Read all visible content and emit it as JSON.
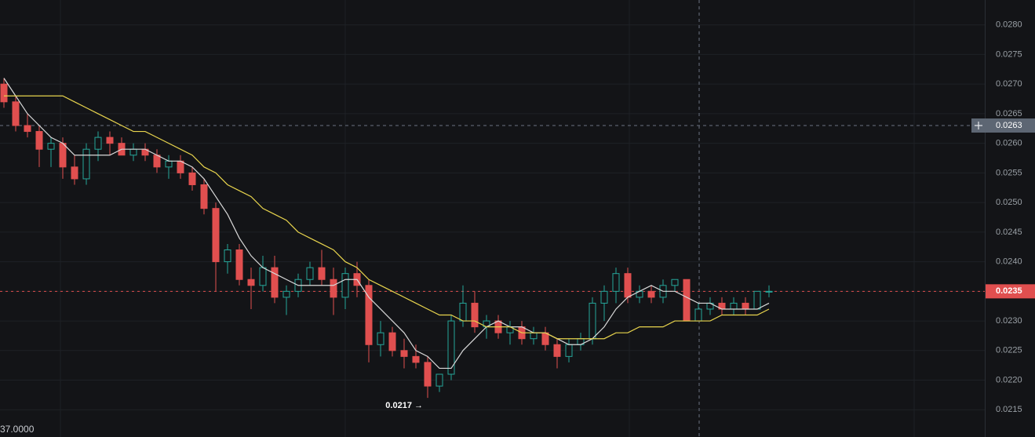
{
  "chart_data": {
    "type": "candlestick",
    "categories": [
      null,
      null,
      null,
      null,
      null,
      null,
      null,
      null,
      null,
      null,
      null,
      null,
      null,
      null,
      null,
      null,
      null,
      null,
      null,
      null,
      null,
      null,
      null,
      null,
      null,
      null,
      null,
      null,
      null,
      null,
      null,
      null,
      null,
      null,
      null,
      null,
      null,
      null,
      null,
      null,
      null,
      null,
      null,
      null,
      null,
      null,
      null,
      null,
      null,
      null,
      null,
      null,
      null,
      null,
      null,
      null,
      null,
      null,
      null,
      null,
      null,
      null,
      null,
      null,
      null,
      null
    ],
    "open": [
      0.027,
      0.0267,
      0.0263,
      0.0262,
      0.0259,
      0.026,
      0.0256,
      0.0254,
      0.0259,
      0.0261,
      0.026,
      0.0258,
      0.0259,
      0.0258,
      0.0256,
      0.0257,
      0.0255,
      0.0253,
      0.0249,
      0.024,
      0.0242,
      0.0237,
      0.0236,
      0.0239,
      0.0234,
      0.0235,
      0.0237,
      0.0239,
      0.0237,
      0.0234,
      0.0238,
      0.0236,
      0.0226,
      0.0228,
      0.0225,
      0.0224,
      0.0223,
      0.0219,
      0.0221,
      0.023,
      0.0233,
      0.0229,
      0.023,
      0.0228,
      0.0229,
      0.0227,
      0.0228,
      0.0226,
      0.0224,
      0.0226,
      0.0227,
      0.0233,
      0.0235,
      0.0238,
      0.0234,
      0.0235,
      0.0234,
      0.0236,
      0.0237,
      0.023,
      0.0232,
      0.0233,
      0.0232,
      0.0233,
      0.0232,
      0.0235
    ],
    "high": [
      0.0271,
      0.0268,
      0.0265,
      0.0263,
      0.0261,
      0.0261,
      0.0258,
      0.026,
      0.0262,
      0.0262,
      0.0261,
      0.026,
      0.026,
      0.0259,
      0.0258,
      0.0258,
      0.0256,
      0.0254,
      0.025,
      0.0243,
      0.0243,
      0.0239,
      0.0241,
      0.0241,
      0.0236,
      0.0238,
      0.024,
      0.0242,
      0.0239,
      0.0239,
      0.024,
      0.0237,
      0.023,
      0.0229,
      0.0227,
      0.0226,
      0.0224,
      0.0221,
      0.0231,
      0.0236,
      0.0235,
      0.0231,
      0.0231,
      0.023,
      0.023,
      0.0229,
      0.0229,
      0.0227,
      0.0227,
      0.0228,
      0.0234,
      0.0236,
      0.0239,
      0.0239,
      0.0236,
      0.0236,
      0.0237,
      0.0237,
      0.0237,
      0.0233,
      0.0234,
      0.0234,
      0.0234,
      0.0234,
      0.0235,
      0.0236
    ],
    "low": [
      0.0266,
      0.0262,
      0.0261,
      0.0256,
      0.0256,
      0.0254,
      0.0253,
      0.0253,
      0.0257,
      0.0258,
      0.0258,
      0.0257,
      0.0257,
      0.0255,
      0.0254,
      0.0254,
      0.0252,
      0.0248,
      0.0235,
      0.0238,
      0.0236,
      0.0232,
      0.0235,
      0.0233,
      0.0231,
      0.0234,
      0.0236,
      0.0236,
      0.0231,
      0.0232,
      0.0234,
      0.0223,
      0.0224,
      0.0224,
      0.0222,
      0.0222,
      0.0217,
      0.0218,
      0.022,
      0.0229,
      0.0228,
      0.0227,
      0.0227,
      0.0226,
      0.0226,
      0.0226,
      0.0225,
      0.0222,
      0.0223,
      0.0225,
      0.0226,
      0.023,
      0.0233,
      0.0233,
      0.0233,
      0.0233,
      0.0233,
      0.0235,
      0.023,
      0.023,
      0.0231,
      0.0231,
      0.0231,
      0.0231,
      0.0232,
      0.0234
    ],
    "close": [
      0.0267,
      0.0263,
      0.0262,
      0.0259,
      0.026,
      0.0256,
      0.0254,
      0.0259,
      0.0261,
      0.026,
      0.0258,
      0.0259,
      0.0258,
      0.0256,
      0.0257,
      0.0255,
      0.0253,
      0.0249,
      0.024,
      0.0242,
      0.0237,
      0.0236,
      0.0239,
      0.0234,
      0.0235,
      0.0237,
      0.0239,
      0.0237,
      0.0234,
      0.0238,
      0.0236,
      0.0226,
      0.0228,
      0.0225,
      0.0224,
      0.0223,
      0.0219,
      0.0221,
      0.023,
      0.0233,
      0.0229,
      0.023,
      0.0228,
      0.0229,
      0.0227,
      0.0228,
      0.0226,
      0.0224,
      0.0226,
      0.0227,
      0.0233,
      0.0235,
      0.0238,
      0.0234,
      0.0235,
      0.0234,
      0.0236,
      0.0237,
      0.023,
      0.0232,
      0.0233,
      0.0232,
      0.0233,
      0.0232,
      0.0235,
      0.0235
    ],
    "up_color": "#26a69a",
    "down_color": "#e04f4f",
    "moving_averages": [
      {
        "color": "#d9d9d9",
        "values": [
          0.0271,
          0.0268,
          0.0265,
          0.0263,
          0.0261,
          0.026,
          0.0258,
          0.0258,
          0.0258,
          0.0258,
          0.0259,
          0.0259,
          0.0259,
          0.0258,
          0.0257,
          0.0257,
          0.0256,
          0.0254,
          0.0251,
          0.0248,
          0.0244,
          0.0241,
          0.0239,
          0.0238,
          0.0237,
          0.0236,
          0.0236,
          0.0236,
          0.0236,
          0.0237,
          0.0237,
          0.0234,
          0.0232,
          0.023,
          0.0228,
          0.0225,
          0.0224,
          0.0222,
          0.0222,
          0.0225,
          0.0227,
          0.0229,
          0.023,
          0.0229,
          0.0229,
          0.0228,
          0.0228,
          0.0227,
          0.0226,
          0.0226,
          0.0227,
          0.0229,
          0.0232,
          0.0234,
          0.0235,
          0.0236,
          0.0235,
          0.0235,
          0.0234,
          0.0233,
          0.0233,
          0.0232,
          0.0232,
          0.0232,
          0.0232,
          0.0233
        ]
      },
      {
        "color": "#e8d44d",
        "values": [
          0.0268,
          0.0268,
          0.0268,
          0.0268,
          0.0268,
          0.0268,
          0.0267,
          0.0266,
          0.0265,
          0.0264,
          0.0263,
          0.0262,
          0.0262,
          0.0261,
          0.026,
          0.0259,
          0.0258,
          0.0256,
          0.0255,
          0.0253,
          0.0252,
          0.0251,
          0.0249,
          0.0248,
          0.0247,
          0.0245,
          0.0244,
          0.0243,
          0.0242,
          0.024,
          0.0239,
          0.0237,
          0.0236,
          0.0235,
          0.0234,
          0.0233,
          0.0232,
          0.0231,
          0.0231,
          0.023,
          0.023,
          0.0229,
          0.0229,
          0.0229,
          0.0228,
          0.0228,
          0.0228,
          0.0227,
          0.0227,
          0.0227,
          0.0227,
          0.0227,
          0.0228,
          0.0228,
          0.0229,
          0.0229,
          0.0229,
          0.023,
          0.023,
          0.023,
          0.023,
          0.0231,
          0.0231,
          0.0231,
          0.0231,
          0.0232
        ]
      }
    ],
    "ylim": [
      0.02104,
      0.02842
    ],
    "yticks": [
      0.0215,
      {
        "value": 0.022,
        "label": "0.0220"
      },
      0.0225,
      {
        "value": 0.023,
        "label": "0.0230"
      },
      0.0235,
      {
        "value": 0.024,
        "label": "0.0240"
      },
      0.0245,
      {
        "value": 0.025,
        "label": "0.0250"
      },
      0.0255,
      {
        "value": 0.026,
        "label": "0.0260"
      },
      0.0265,
      {
        "value": 0.027,
        "label": "0.0270"
      },
      0.0275,
      {
        "value": 0.028,
        "label": "0.0280"
      }
    ],
    "grid": true,
    "current_price": {
      "value": 0.0235,
      "label": "0.0235"
    },
    "crosshair": {
      "value": 0.0263,
      "label": "0.0263"
    },
    "low_marker": {
      "value": 0.0217,
      "label": "0.0217 →"
    },
    "volume_label": "37.0000"
  }
}
